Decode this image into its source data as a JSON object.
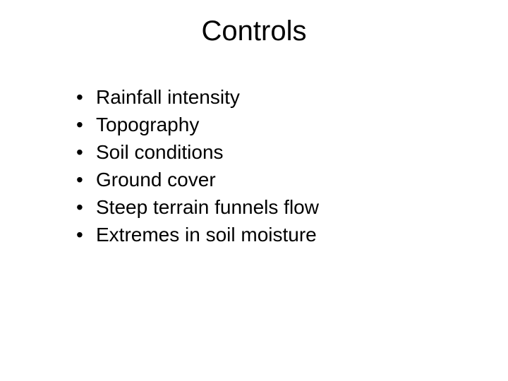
{
  "slide": {
    "title": "Controls",
    "title_fontsize": 40,
    "body_fontsize": 28,
    "text_color": "#000000",
    "background_color": "#ffffff",
    "bullets": [
      "Rainfall intensity",
      "Topography",
      "Soil conditions",
      "Ground cover",
      "Steep terrain funnels flow",
      "Extremes in soil moisture"
    ],
    "bullet_glyph": "•"
  }
}
